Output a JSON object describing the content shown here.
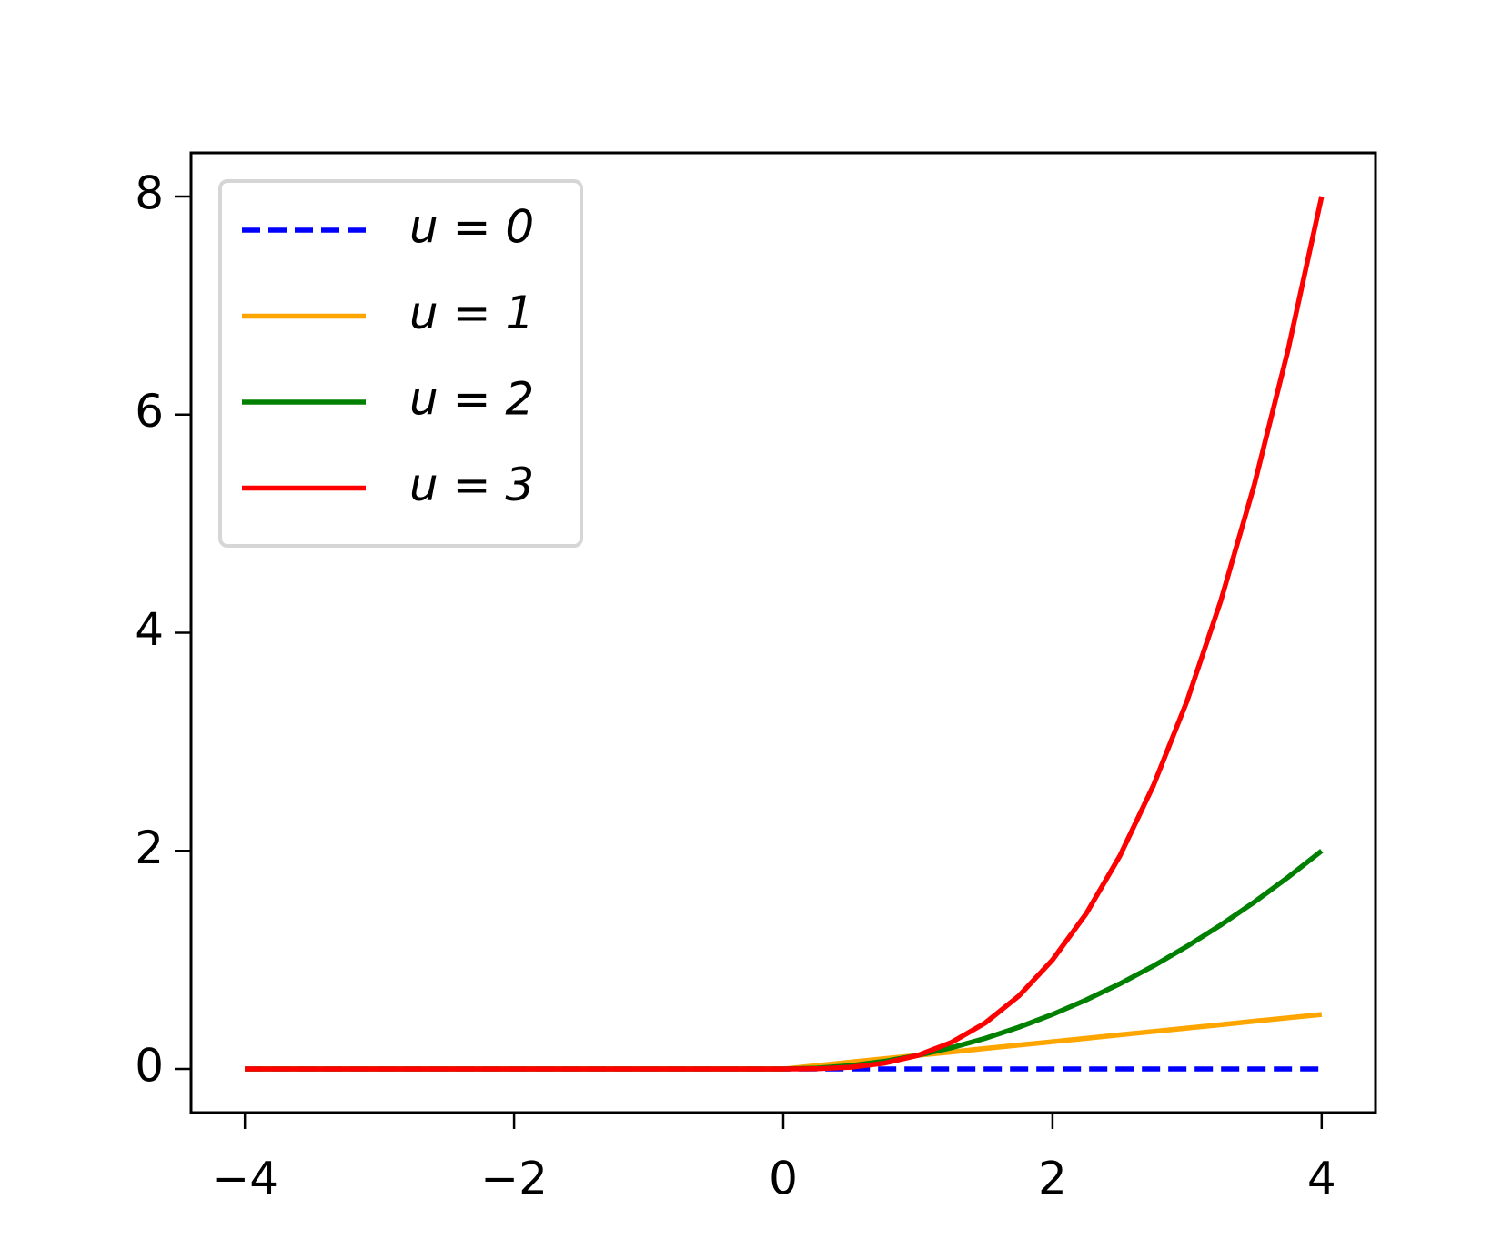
{
  "chart_data": {
    "type": "line",
    "x": [
      -4,
      -3.75,
      -3.5,
      -3.25,
      -3,
      -2.75,
      -2.5,
      -2.25,
      -2,
      -1.75,
      -1.5,
      -1.25,
      -1,
      -0.75,
      -0.5,
      -0.25,
      0,
      0.25,
      0.5,
      0.75,
      1,
      1.25,
      1.5,
      1.75,
      2,
      2.25,
      2.5,
      2.75,
      3,
      3.25,
      3.5,
      3.75,
      4
    ],
    "series": [
      {
        "name": "u = 0",
        "color": "#0000ff",
        "linestyle": "dashed",
        "values": [
          0,
          0,
          0,
          0,
          0,
          0,
          0,
          0,
          0,
          0,
          0,
          0,
          0,
          0,
          0,
          0,
          0,
          0,
          0,
          0,
          0,
          0,
          0,
          0,
          0,
          0,
          0,
          0,
          0,
          0,
          0,
          0,
          0
        ]
      },
      {
        "name": "u = 1",
        "color": "#ffa500",
        "linestyle": "solid",
        "values": [
          0,
          0,
          0,
          0,
          0,
          0,
          0,
          0,
          0,
          0,
          0,
          0,
          0,
          0,
          0,
          0,
          0,
          0.031,
          0.063,
          0.094,
          0.125,
          0.156,
          0.188,
          0.219,
          0.25,
          0.281,
          0.313,
          0.344,
          0.375,
          0.406,
          0.438,
          0.469,
          0.5
        ]
      },
      {
        "name": "u = 2",
        "color": "#008000",
        "linestyle": "solid",
        "values": [
          0,
          0,
          0,
          0,
          0,
          0,
          0,
          0,
          0,
          0,
          0,
          0,
          0,
          0,
          0,
          0,
          0,
          0.008,
          0.031,
          0.07,
          0.125,
          0.195,
          0.281,
          0.383,
          0.5,
          0.633,
          0.781,
          0.945,
          1.125,
          1.32,
          1.531,
          1.758,
          2
        ]
      },
      {
        "name": "u = 3",
        "color": "#ff0000",
        "linestyle": "solid",
        "values": [
          0,
          0,
          0,
          0,
          0,
          0,
          0,
          0,
          0,
          0,
          0,
          0,
          0,
          0,
          0,
          0,
          0,
          0.002,
          0.016,
          0.053,
          0.125,
          0.244,
          0.422,
          0.67,
          1,
          1.424,
          1.953,
          2.6,
          3.375,
          4.291,
          5.359,
          6.592,
          8
        ]
      }
    ],
    "xlim": [
      -4.4,
      4.4
    ],
    "ylim": [
      -0.4,
      8.4
    ],
    "xticks": [
      {
        "value": -4,
        "label": "−4"
      },
      {
        "value": -2,
        "label": "−2"
      },
      0,
      2,
      4
    ],
    "yticks": [
      0,
      2,
      4,
      6,
      8
    ],
    "legend": "upper left"
  }
}
